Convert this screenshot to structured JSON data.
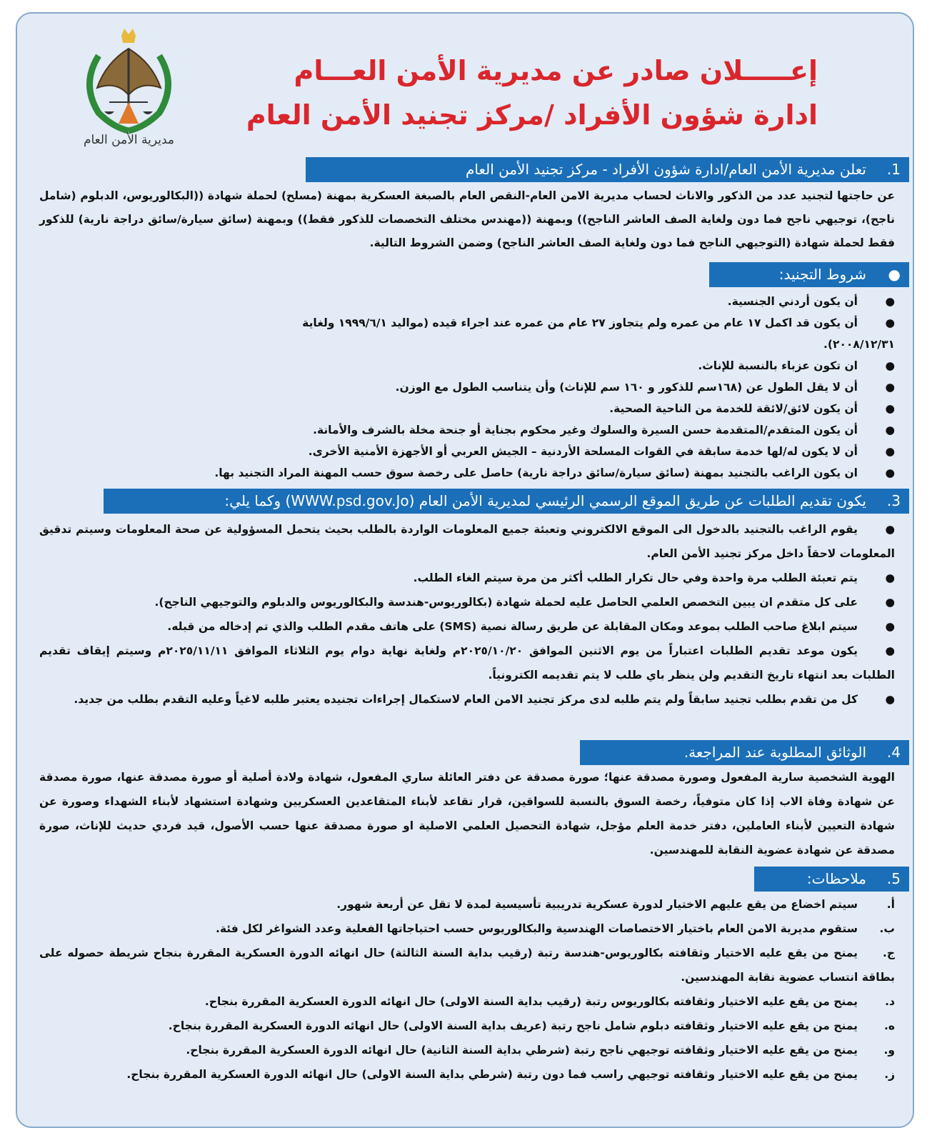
{
  "header": {
    "logo_caption": "مديرية الأمن العام",
    "title_line1": "إعـــــلان صادر عن مديرية الأمن العـــام",
    "title_line2": "ادارة شؤون الأفراد /مركز تجنيد الأمن العام"
  },
  "colors": {
    "title": "#d9262c",
    "section_bar": "#1b6fb8",
    "background": "#e3ebf6"
  },
  "section1": {
    "number": "1.",
    "heading": "تعلن مديرية الأمن العام/ادارة شؤون الأفراد - مركز تجنيد الأمن العام",
    "body": "عن حاجتها لتجنيد عدد من الذكور والاناث لحساب مديرية الامن العام-النقص العام بالصبغة العسكرية بمهنة (مسلح) لحملة شهادة ((البكالوريوس، الدبلوم (شامل ناجح)، توجيهي ناجح فما دون ولغاية الصف العاشر الناجح)) وبمهنة ((مهندس مختلف التخصصات للذكور فقط)) وبمهنة (سائق سيارة/سائق دراجة نارية) للذكور فقط لحملة شهادة (التوجيهي الناجح فما دون ولغاية الصف العاشر الناجح) وضمن الشروط التالية."
  },
  "conditions": {
    "marker": "●",
    "heading": "شروط التجنيد:",
    "items": [
      "أن يكون أردني الجنسية.",
      "أن يكون قد اكمل ١٧ عام من عمره ولم يتجاوز ٢٧ عام من عمره عند اجراء قيده (مواليد ١٩٩٩/٦/١ ولغاية ٢٠٠٨/١٢/٣١).",
      "ان تكون عزباء بالنسبة للإناث.",
      "أن لا يقل الطول عن (١٦٨سم للذكور و ١٦٠ سم للإناث) وأن يتناسب الطول مع الوزن.",
      "أن يكون لائق/لائقة للخدمة من الناحية الصحية.",
      "أن يكون المتقدم/المتقدمة حسن السيرة والسلوك وغير محكوم بجناية أو جنحة مخلة بالشرف والأمانة.",
      "أن لا يكون له/لها خدمة سابقة في القوات المسلحة الأردنية – الجيش العربي أو الأجهزة الأمنية الأخرى.",
      "ان يكون الراغب بالتجنيد بمهنة (سائق سيارة/سائق دراجة نارية) حاصل على رخصة سوق حسب المهنة المراد التجنيد بها."
    ]
  },
  "section3": {
    "number": "3.",
    "heading": "يكون تقديم الطلبات عن طريق الموقع الرسمي الرئيسي لمديرية الأمن العام (WWW.psd.gov.Jo) وكما يلي:",
    "marker": "●",
    "items": [
      "يقوم الراغب بالتجنيد بالدخول الى الموقع الالكتروني وتعبئة جميع المعلومات الواردة بالطلب بحيث يتحمل المسؤولية عن صحة المعلومات وسيتم تدقيق المعلومات لاحقاً داخل مركز تجنيد الأمن العام.",
      "يتم تعبئة الطلب مرة واحدة وفي حال تكرار الطلب أكثر من مرة سيتم الغاء الطلب.",
      "على كل متقدم ان يبين التخصص العلمي الحاصل عليه لحملة شهادة (بكالوريوس-هندسة والبكالوريوس والدبلوم والتوجيهي الناجح).",
      "سيتم ابلاغ صاحب الطلب بموعد ومكان المقابلة عن طريق رسالة نصية (SMS) على هاتف مقدم الطلب والذي تم إدخاله من قبله.",
      "يكون موعد تقديم الطلبات اعتباراً من يوم الاثنين الموافق ٢٠٢٥/١٠/٢٠م ولغاية نهاية دوام يوم الثلاثاء الموافق ٢٠٢٥/١١/١١م وسيتم إيقاف تقديم الطلبات بعد انتهاء تاريخ التقديم ولن ينظر باي طلب لا يتم تقديمه الكترونياً.",
      "كل من تقدم بطلب تجنيد سابقاً ولم يتم طلبه لدى مركز تجنيد الامن العام لاستكمال إجراءات تجنيده يعتبر طلبه لاغياً وعليه التقدم بطلب من جديد."
    ]
  },
  "section4": {
    "number": "4.",
    "heading": "الوثائق المطلوبة عند المراجعة.",
    "body": "الهوية الشخصية سارية المفعول وصورة مصدقة عنها؛ صورة مصدقة عن دفتر العائلة ساري المفعول، شهادة ولادة أصلية أو صورة مصدقة عنها، صورة مصدقة عن شهادة وفاة الاب إذا كان متوفياً، رخصة السوق بالنسبة للسواقين، قرار تقاعد لأبناء المتقاعدين العسكريين وشهادة استشهاد لأبناء الشهداء وصورة عن شهادة التعيين لأبناء العاملين، دفتر خدمة العلم مؤجل، شهادة التحصيل العلمي الاصلية او صورة مصدقة عنها حسب الأصول، قيد فردي حديث للإناث، صورة مصدقة عن شهادة عضوية النقابة للمهندسين."
  },
  "section5": {
    "number": "5.",
    "heading": "ملاحظات:",
    "items": [
      {
        "label": "أ.",
        "text": "سيتم اخضاع من يقع عليهم الاختيار لدورة عسكرية تدريبية تأسيسية لمدة لا تقل عن أربعة شهور."
      },
      {
        "label": "ب.",
        "text": "ستقوم مديرية الامن العام باختيار الاختصاصات الهندسية والبكالوريوس حسب احتياجاتها الفعلية وعدد الشواغر لكل فئة."
      },
      {
        "label": "ج.",
        "text": "يمنح من يقع عليه الاختيار وثقافته بكالوريوس-هندسة رتبة (رقيب بداية السنة الثالثة) حال انهائه الدورة العسكرية المقررة بنجاح شريطة حصوله على بطاقة انتساب عضوية نقابة المهندسين."
      },
      {
        "label": "د.",
        "text": "يمنح من يقع عليه الاختيار وثقافته بكالوريوس رتبة (رقيب بداية السنة الاولى) حال انهائه الدورة العسكرية المقررة بنجاح."
      },
      {
        "label": "ه.",
        "text": "يمنح من يقع عليه الاختيار وثقافته دبلوم شامل ناجح رتبة (عريف بداية السنة الاولى) حال انهائه الدورة العسكرية المقررة بنجاح."
      },
      {
        "label": "و.",
        "text": "يمنح من يقع عليه الاختيار وثقافته توجيهي ناجح رتبة (شرطي بداية السنة الثانية) حال انهائه الدورة العسكرية المقررة بنجاح."
      },
      {
        "label": "ز.",
        "text": "يمنح من يقع عليه الاختيار وثقافته توجيهي راسب فما دون رتبة (شرطي بداية السنة الاولى) حال انهائه الدورة العسكرية المقررة بنجاح."
      }
    ]
  }
}
